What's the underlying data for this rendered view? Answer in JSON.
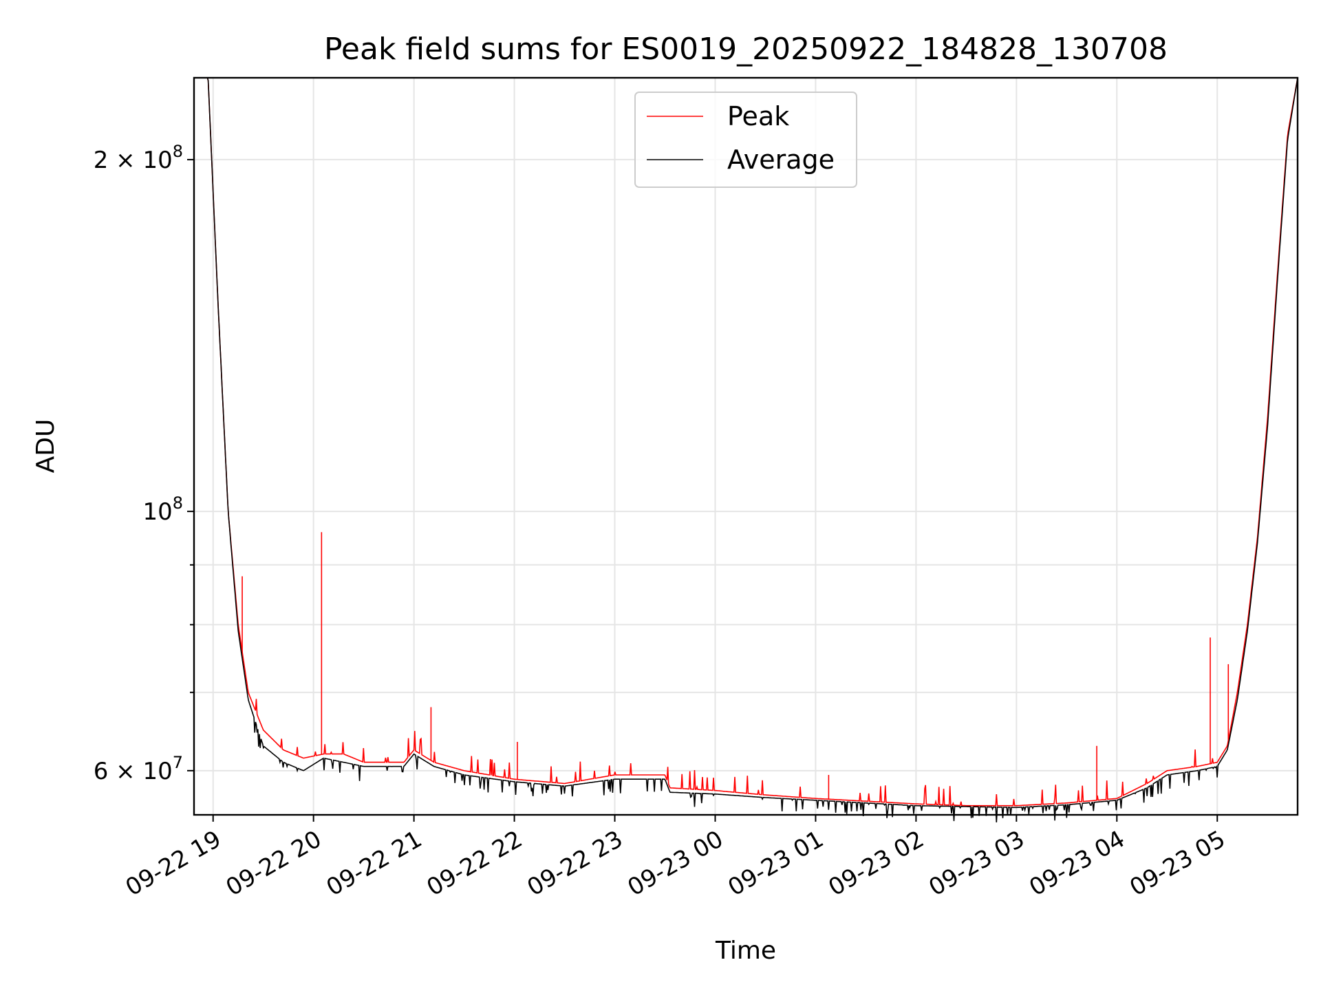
{
  "chart_data": {
    "type": "line",
    "title": "Peak field sums for ES0019_20250922_184828_130708",
    "xlabel": "Time",
    "ylabel": "ADU",
    "yscale": "log",
    "ylim": [
      55000000,
      235000000
    ],
    "xlim_hours": [
      -0.19,
      10.8
    ],
    "x_unit": "hours since 09-22 19:00",
    "grid": true,
    "legend_position": "upper center",
    "x_ticks": [
      {
        "value": 0,
        "label": "09-22 19"
      },
      {
        "value": 1,
        "label": "09-22 20"
      },
      {
        "value": 2,
        "label": "09-22 21"
      },
      {
        "value": 3,
        "label": "09-22 22"
      },
      {
        "value": 4,
        "label": "09-22 23"
      },
      {
        "value": 5,
        "label": "09-23 00"
      },
      {
        "value": 6,
        "label": "09-23 01"
      },
      {
        "value": 7,
        "label": "09-23 02"
      },
      {
        "value": 8,
        "label": "09-23 03"
      },
      {
        "value": 9,
        "label": "09-23 04"
      },
      {
        "value": 10,
        "label": "09-23 05"
      }
    ],
    "y_major_ticks": [
      {
        "value": 60000000,
        "mantissa": "6 × 10",
        "exp": "7"
      },
      {
        "value": 100000000,
        "mantissa": "10",
        "exp": "8"
      },
      {
        "value": 200000000,
        "mantissa": "2 × 10",
        "exp": "8"
      }
    ],
    "y_minor_ticks": [
      70000000,
      80000000,
      90000000
    ],
    "series": [
      {
        "name": "Peak",
        "color": "#ff0000",
        "x": [
          -0.19,
          -0.05,
          0.05,
          0.15,
          0.25,
          0.35,
          0.5,
          0.7,
          0.9,
          1.1,
          1.3,
          1.5,
          1.7,
          1.9,
          2.0,
          2.2,
          2.5,
          3.0,
          3.5,
          4.0,
          4.2,
          4.5,
          4.55,
          5.0,
          5.5,
          6.0,
          6.5,
          7.0,
          7.5,
          8.0,
          8.5,
          9.0,
          9.3,
          9.5,
          9.8,
          10.0,
          10.1,
          10.2,
          10.3,
          10.4,
          10.5,
          10.6,
          10.7,
          10.8
        ],
        "y": [
          235000000,
          235000000,
          150000000,
          100000000,
          80000000,
          70000000,
          65000000,
          62500000,
          61500000,
          62000000,
          62000000,
          61000000,
          61000000,
          61000000,
          62500000,
          61000000,
          60000000,
          59000000,
          58500000,
          59500000,
          59500000,
          59500000,
          58000000,
          57700000,
          57200000,
          56800000,
          56500000,
          56200000,
          56000000,
          56000000,
          56300000,
          56800000,
          58500000,
          60000000,
          60500000,
          61000000,
          63000000,
          70000000,
          80000000,
          95000000,
          120000000,
          160000000,
          210000000,
          235000000
        ],
        "spikes": [
          {
            "x": 0.29,
            "y": 88000000
          },
          {
            "x": 1.08,
            "y": 96000000
          },
          {
            "x": 2.17,
            "y": 68000000
          },
          {
            "x": 3.03,
            "y": 63500000
          },
          {
            "x": 6.13,
            "y": 59500000
          },
          {
            "x": 8.8,
            "y": 63000000
          },
          {
            "x": 9.93,
            "y": 78000000
          },
          {
            "x": 10.11,
            "y": 74000000
          }
        ]
      },
      {
        "name": "Average",
        "color": "#000000",
        "x": [
          -0.19,
          -0.05,
          0.05,
          0.15,
          0.25,
          0.35,
          0.5,
          0.7,
          0.9,
          1.1,
          1.3,
          1.5,
          1.7,
          1.9,
          2.0,
          2.2,
          2.5,
          3.0,
          3.5,
          4.0,
          4.2,
          4.5,
          4.55,
          5.0,
          5.5,
          6.0,
          6.5,
          7.0,
          7.5,
          8.0,
          8.5,
          9.0,
          9.3,
          9.5,
          9.8,
          10.0,
          10.1,
          10.2,
          10.3,
          10.4,
          10.5,
          10.6,
          10.7,
          10.8
        ],
        "y": [
          235000000,
          235000000,
          150000000,
          100000000,
          79000000,
          69000000,
          63000000,
          61000000,
          60000000,
          61500000,
          61000000,
          60500000,
          60500000,
          60500000,
          62000000,
          60500000,
          59500000,
          58700000,
          58200000,
          59000000,
          59000000,
          59000000,
          57500000,
          57300000,
          56900000,
          56600000,
          56300000,
          56000000,
          55900000,
          55800000,
          56100000,
          56600000,
          58000000,
          59500000,
          60000000,
          60500000,
          62500000,
          69000000,
          79000000,
          94000000,
          118000000,
          158000000,
          208000000,
          235000000
        ]
      }
    ]
  }
}
